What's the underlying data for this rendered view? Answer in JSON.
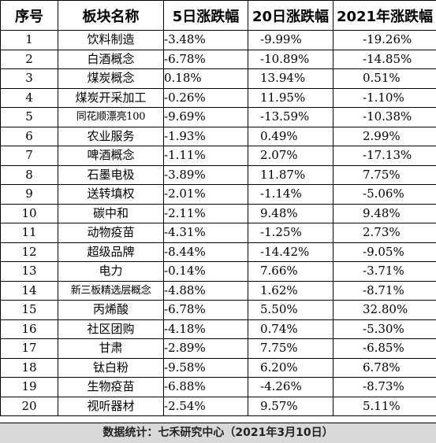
{
  "headers": [
    "序号",
    "板块名称",
    "5日涨跌幅",
    "20日涨跌幅",
    "2021年涨跌幅"
  ],
  "rows": [
    {
      "idx": "1",
      "name": "饮料制造",
      "d5": "-3.48%",
      "d20": "-9.99%",
      "ytd": "-19.26%"
    },
    {
      "idx": "2",
      "name": "白酒概念",
      "d5": "-6.78%",
      "d20": "-10.89%",
      "ytd": "-14.85%"
    },
    {
      "idx": "3",
      "name": "煤炭概念",
      "d5": "0.18%",
      "d20": "13.94%",
      "ytd": "0.51%"
    },
    {
      "idx": "4",
      "name": "煤炭开采加工",
      "d5": "-0.26%",
      "d20": "11.95%",
      "ytd": "-1.10%"
    },
    {
      "idx": "5",
      "name": "同花顺漂亮100",
      "d5": "-9.69%",
      "d20": "-13.59%",
      "ytd": "-10.38%"
    },
    {
      "idx": "6",
      "name": "农业服务",
      "d5": "-1.93%",
      "d20": "0.49%",
      "ytd": "2.99%"
    },
    {
      "idx": "7",
      "name": "啤酒概念",
      "d5": "-1.11%",
      "d20": "2.07%",
      "ytd": "-17.13%"
    },
    {
      "idx": "8",
      "name": "石墨电极",
      "d5": "-3.89%",
      "d20": "11.87%",
      "ytd": "7.75%"
    },
    {
      "idx": "9",
      "name": "送转填权",
      "d5": "-2.01%",
      "d20": "-1.14%",
      "ytd": "-5.06%"
    },
    {
      "idx": "10",
      "name": "碳中和",
      "d5": "-2.11%",
      "d20": "9.48%",
      "ytd": "9.48%"
    },
    {
      "idx": "11",
      "name": "动物疫苗",
      "d5": "-4.31%",
      "d20": "-1.25%",
      "ytd": "2.73%"
    },
    {
      "idx": "12",
      "name": "超级品牌",
      "d5": "-8.44%",
      "d20": "-14.42%",
      "ytd": "-9.05%"
    },
    {
      "idx": "13",
      "name": "电力",
      "d5": "-0.14%",
      "d20": "7.66%",
      "ytd": "-3.71%"
    },
    {
      "idx": "14",
      "name": "新三板精选层概念",
      "d5": "-4.88%",
      "d20": "1.62%",
      "ytd": "-8.71%"
    },
    {
      "idx": "15",
      "name": "丙烯酸",
      "d5": "-6.78%",
      "d20": "5.50%",
      "ytd": "32.80%"
    },
    {
      "idx": "16",
      "name": "社区团购",
      "d5": "-4.18%",
      "d20": "0.74%",
      "ytd": "-5.30%"
    },
    {
      "idx": "17",
      "name": "甘肃",
      "d5": "-2.89%",
      "d20": "7.75%",
      "ytd": "-6.85%"
    },
    {
      "idx": "18",
      "name": "钛白粉",
      "d5": "-9.58%",
      "d20": "6.20%",
      "ytd": "6.78%"
    },
    {
      "idx": "19",
      "name": "生物疫苗",
      "d5": "-6.88%",
      "d20": "-4.26%",
      "ytd": "-8.73%"
    },
    {
      "idx": "20",
      "name": "视听器材",
      "d5": "-2.54%",
      "d20": "9.57%",
      "ytd": "5.11%"
    }
  ],
  "footer": "数据统计：七禾研究中心（2021年3月10日）"
}
